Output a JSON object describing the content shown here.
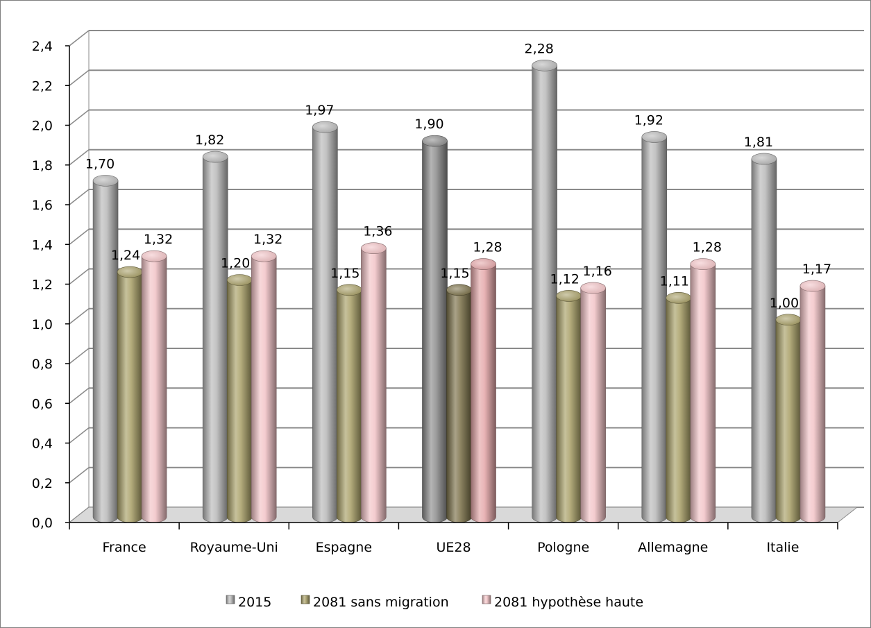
{
  "chart_data": {
    "type": "bar",
    "categories": [
      "France",
      "Royaume-Uni",
      "Espagne",
      "UE28",
      "Pologne",
      "Allemagne",
      "Italie"
    ],
    "series": [
      {
        "name": "2015",
        "values": [
          1.7,
          1.82,
          1.97,
          1.9,
          2.28,
          1.92,
          1.81
        ],
        "labels": [
          "1,70",
          "1,82",
          "1,97",
          "1,90",
          "2,28",
          "1,92",
          "1,81"
        ],
        "color": "#b8b8b8"
      },
      {
        "name": "2081 sans migration",
        "values": [
          1.24,
          1.2,
          1.15,
          1.15,
          1.12,
          1.11,
          1.0
        ],
        "labels": [
          "1,24",
          "1,20",
          "1,15",
          "1,15",
          "1,12",
          "1,11",
          "1,00"
        ],
        "color": "#a89f66"
      },
      {
        "name": "2081 hypothèse haute",
        "values": [
          1.32,
          1.32,
          1.36,
          1.28,
          1.16,
          1.28,
          1.17
        ],
        "labels": [
          "1,32",
          "1,32",
          "1,36",
          "1,28",
          "1,16",
          "1,28",
          "1,17"
        ],
        "color": "#f2c3c6"
      }
    ],
    "highlight_category": "UE28",
    "highlight_colors": [
      "#8c8c8c",
      "#7a7048",
      "#e4a6a8"
    ],
    "ylim": [
      0,
      2.4
    ],
    "yticks": [
      "0,0",
      "0,2",
      "0,4",
      "0,6",
      "0,8",
      "1,0",
      "1,2",
      "1,4",
      "1,6",
      "1,8",
      "2,0",
      "2,2",
      "2,4"
    ],
    "grid": true,
    "legend_position": "bottom",
    "style": "3d-cylinder"
  }
}
